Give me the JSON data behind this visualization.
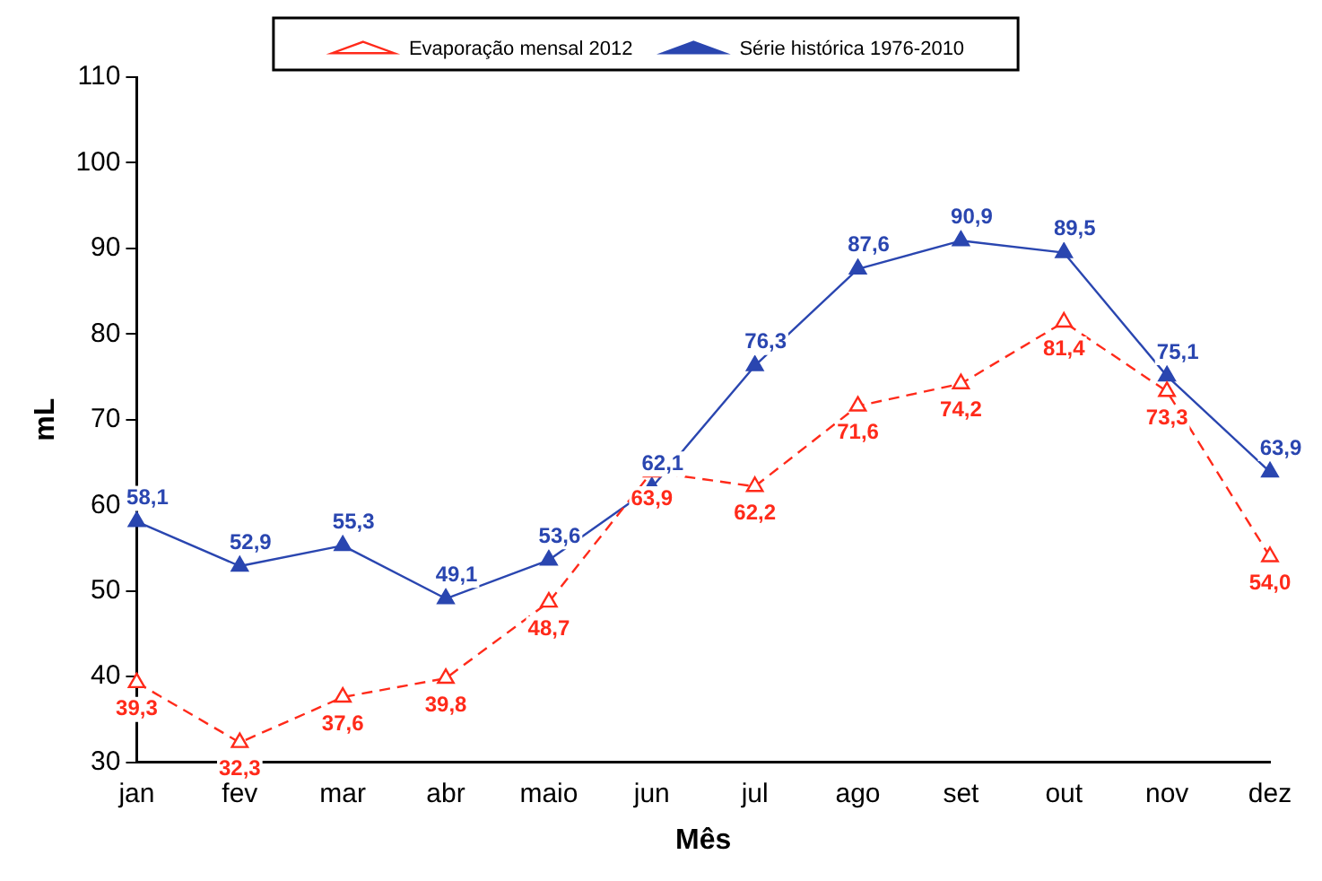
{
  "chart_data": {
    "type": "line",
    "xlabel": "Mês",
    "ylabel": "mL",
    "categories": [
      "jan",
      "fev",
      "mar",
      "abr",
      "maio",
      "jun",
      "jul",
      "ago",
      "set",
      "out",
      "nov",
      "dez"
    ],
    "series": [
      {
        "name": "Evaporação mensal 2012",
        "color": "#ff2a1a",
        "line_style": "dashed",
        "marker": "triangle",
        "values": [
          39.3,
          32.3,
          37.6,
          39.8,
          48.7,
          63.9,
          62.2,
          71.6,
          74.2,
          81.4,
          73.3,
          54.0
        ],
        "value_labels": [
          "39,3",
          "32,3",
          "37,6",
          "39,8",
          "48,7",
          "63,9",
          "62,2",
          "71,6",
          "74,2",
          "81,4",
          "73,3",
          "54,0"
        ]
      },
      {
        "name": "Série histórica 1976-2010",
        "color": "#2a46b0",
        "line_style": "solid",
        "marker": "triangle",
        "values": [
          58.1,
          52.9,
          55.3,
          49.1,
          53.6,
          62.1,
          76.3,
          87.6,
          90.9,
          89.5,
          75.1,
          63.9
        ],
        "value_labels": [
          "58,1",
          "52,9",
          "55,3",
          "49,1",
          "53,6",
          "62,1",
          "76,3",
          "87,6",
          "90,9",
          "89,5",
          "75,1",
          "63,9"
        ]
      }
    ],
    "ylim": [
      30,
      110
    ],
    "yticks": [
      30,
      40,
      50,
      60,
      70,
      80,
      90,
      100,
      110
    ],
    "grid": false,
    "legend": "top"
  }
}
